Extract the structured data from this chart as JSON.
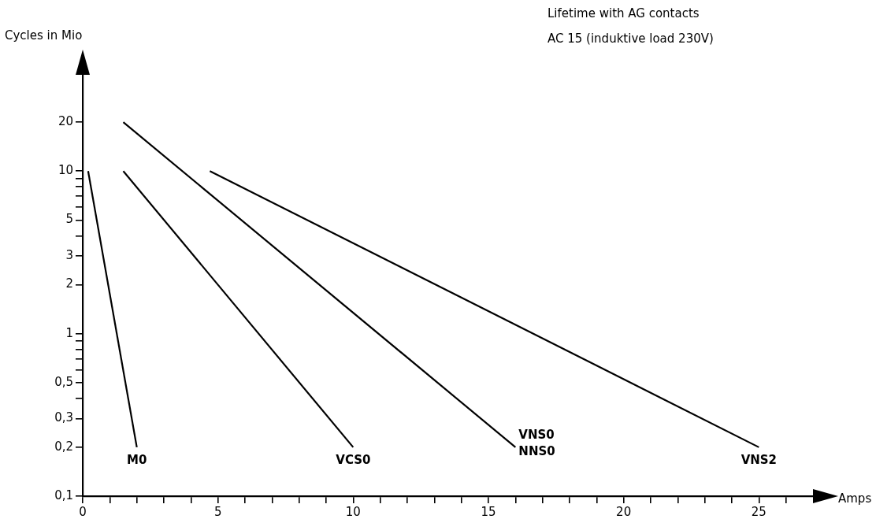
{
  "chart_data": {
    "type": "line",
    "title": "Lifetime with AG contacts",
    "subtitle": "AC 15 (induktive load 230V)",
    "xlabel": "Amps",
    "ylabel": "Cycles in Mio",
    "log": "y",
    "grid": false,
    "legend": false,
    "marker": "none",
    "line_style": "solid",
    "xlim": [
      0,
      27
    ],
    "ylim": [
      0.1,
      40
    ],
    "xticks": [
      0,
      {
        "value": 1,
        "label": null
      },
      {
        "value": 2,
        "label": null
      },
      {
        "value": 3,
        "label": null
      },
      {
        "value": 4,
        "label": null
      },
      5,
      {
        "value": 6,
        "label": null
      },
      {
        "value": 7,
        "label": null
      },
      {
        "value": 8,
        "label": null
      },
      {
        "value": 9,
        "label": null
      },
      10,
      {
        "value": 11,
        "label": null
      },
      {
        "value": 12,
        "label": null
      },
      {
        "value": 13,
        "label": null
      },
      {
        "value": 14,
        "label": null
      },
      15,
      {
        "value": 16,
        "label": null
      },
      {
        "value": 17,
        "label": null
      },
      {
        "value": 18,
        "label": null
      },
      {
        "value": 19,
        "label": null
      },
      20,
      {
        "value": 21,
        "label": null
      },
      {
        "value": 22,
        "label": null
      },
      {
        "value": 23,
        "label": null
      },
      {
        "value": 24,
        "label": null
      },
      25,
      {
        "value": 26,
        "label": null
      }
    ],
    "yticks": [
      {
        "value": 0.1,
        "label": "0,1"
      },
      {
        "value": 0.2,
        "label": "0,2"
      },
      {
        "value": 0.3,
        "label": "0,3"
      },
      {
        "value": 0.4,
        "label": null
      },
      {
        "value": 0.5,
        "label": "0,5"
      },
      {
        "value": 0.6,
        "label": null
      },
      {
        "value": 0.7,
        "label": null
      },
      {
        "value": 0.8,
        "label": null
      },
      {
        "value": 0.9,
        "label": null
      },
      1,
      2,
      3,
      {
        "value": 4,
        "label": null
      },
      5,
      {
        "value": 6,
        "label": null
      },
      {
        "value": 7,
        "label": null
      },
      {
        "value": 8,
        "label": null
      },
      {
        "value": 9,
        "label": null
      },
      10,
      20
    ],
    "series": [
      {
        "name": "M0",
        "color": "#000000",
        "x": [
          0.2,
          2
        ],
        "values": [
          10,
          0.2
        ]
      },
      {
        "name": "VCS0",
        "color": "#000000",
        "x": [
          1.5,
          10
        ],
        "values": [
          10,
          0.2
        ]
      },
      {
        "name": "VNS0\nNNS0",
        "color": "#000000",
        "x": [
          1.5,
          16
        ],
        "values": [
          20,
          0.2
        ]
      },
      {
        "name": "VNS2",
        "color": "#000000",
        "x": [
          4.7,
          25
        ],
        "values": [
          10,
          0.2
        ]
      }
    ]
  }
}
